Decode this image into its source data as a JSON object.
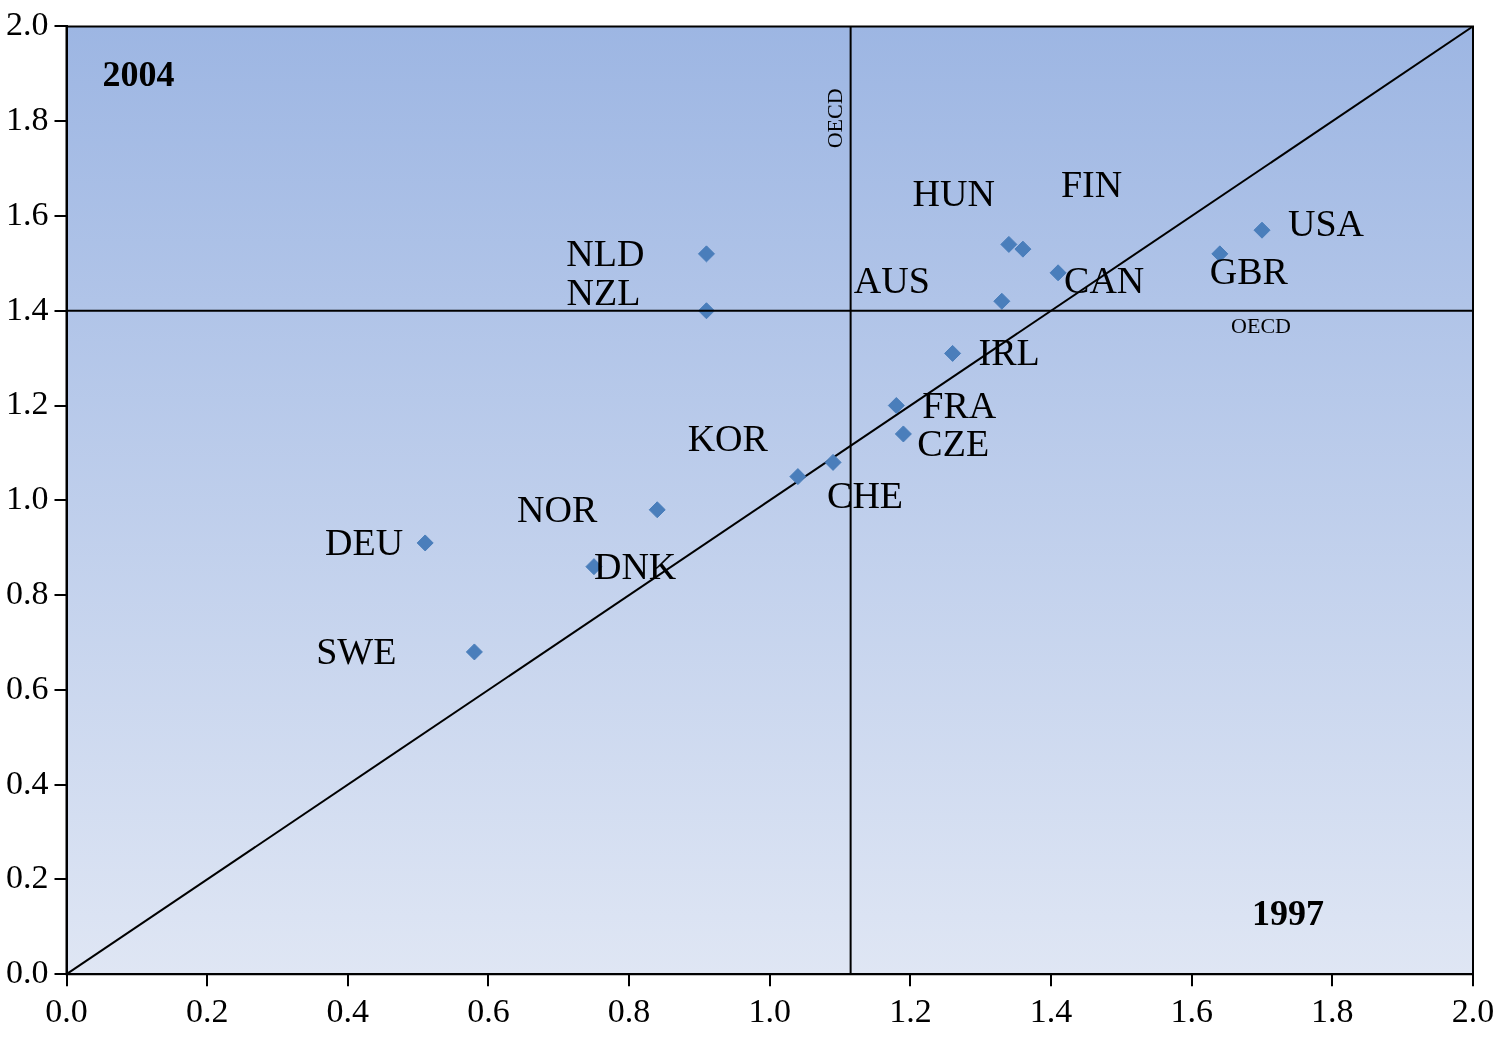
{
  "chart_data": {
    "type": "scatter",
    "xlabel": "1997",
    "ylabel": "2004",
    "xlim": [
      0,
      2
    ],
    "ylim": [
      0,
      2
    ],
    "xticks": [
      {
        "value": 0,
        "label": "0.0"
      },
      {
        "value": 0.2,
        "label": "0.2"
      },
      {
        "value": 0.4,
        "label": "0.4"
      },
      {
        "value": 0.6,
        "label": "0.6"
      },
      {
        "value": 0.8,
        "label": "0.8"
      },
      {
        "value": 1,
        "label": "1.0"
      },
      {
        "value": 1.2,
        "label": "1.2"
      },
      {
        "value": 1.4,
        "label": "1.4"
      },
      {
        "value": 1.6,
        "label": "1.6"
      },
      {
        "value": 1.8,
        "label": "1.8"
      },
      {
        "value": 2,
        "label": "2.0"
      }
    ],
    "yticks": [
      {
        "value": 0,
        "label": "0.0"
      },
      {
        "value": 0.2,
        "label": "0.2"
      },
      {
        "value": 0.4,
        "label": "0.4"
      },
      {
        "value": 0.6,
        "label": "0.6"
      },
      {
        "value": 0.8,
        "label": "0.8"
      },
      {
        "value": 1,
        "label": "1.0"
      },
      {
        "value": 1.2,
        "label": "1.2"
      },
      {
        "value": 1.4,
        "label": "1.4"
      },
      {
        "value": 1.6,
        "label": "1.6"
      },
      {
        "value": 1.8,
        "label": "1.8"
      },
      {
        "value": 2,
        "label": "2.0"
      }
    ],
    "grid": false,
    "legend": false,
    "marker": "diamond",
    "series": [
      {
        "color": "#4a7ebb",
        "x": [
          0.91,
          0.91,
          1.34,
          1.36,
          1.41,
          1.33,
          1.7,
          1.64,
          1.26,
          1.18,
          1.19,
          1.09,
          1.04,
          0.84,
          0.75,
          0.51,
          0.58
        ],
        "values": [
          1.52,
          1.4,
          1.54,
          1.53,
          1.48,
          1.42,
          1.57,
          1.52,
          1.31,
          1.2,
          1.14,
          1.08,
          1.05,
          0.98,
          0.86,
          0.91,
          0.68
        ],
        "value_labels": [
          "NLD",
          "NZL",
          "HUN",
          "FIN",
          "CAN",
          "AUS",
          "USA",
          "GBR",
          "IRL",
          "FRA",
          "CZE",
          "CHE",
          "KOR",
          "NOR",
          "DNK",
          "DEU",
          "SWE"
        ]
      },
      {
        "type": "line",
        "color": "#000000",
        "x": [
          0,
          2
        ],
        "values": [
          0,
          2
        ],
        "marker": "none"
      }
    ],
    "ref_lines": [
      {
        "axis": "x",
        "value": 1.115,
        "label": "OECD",
        "color": "#000000"
      },
      {
        "axis": "y",
        "value": 1.4,
        "label": "OECD",
        "color": "#000000"
      }
    ]
  }
}
